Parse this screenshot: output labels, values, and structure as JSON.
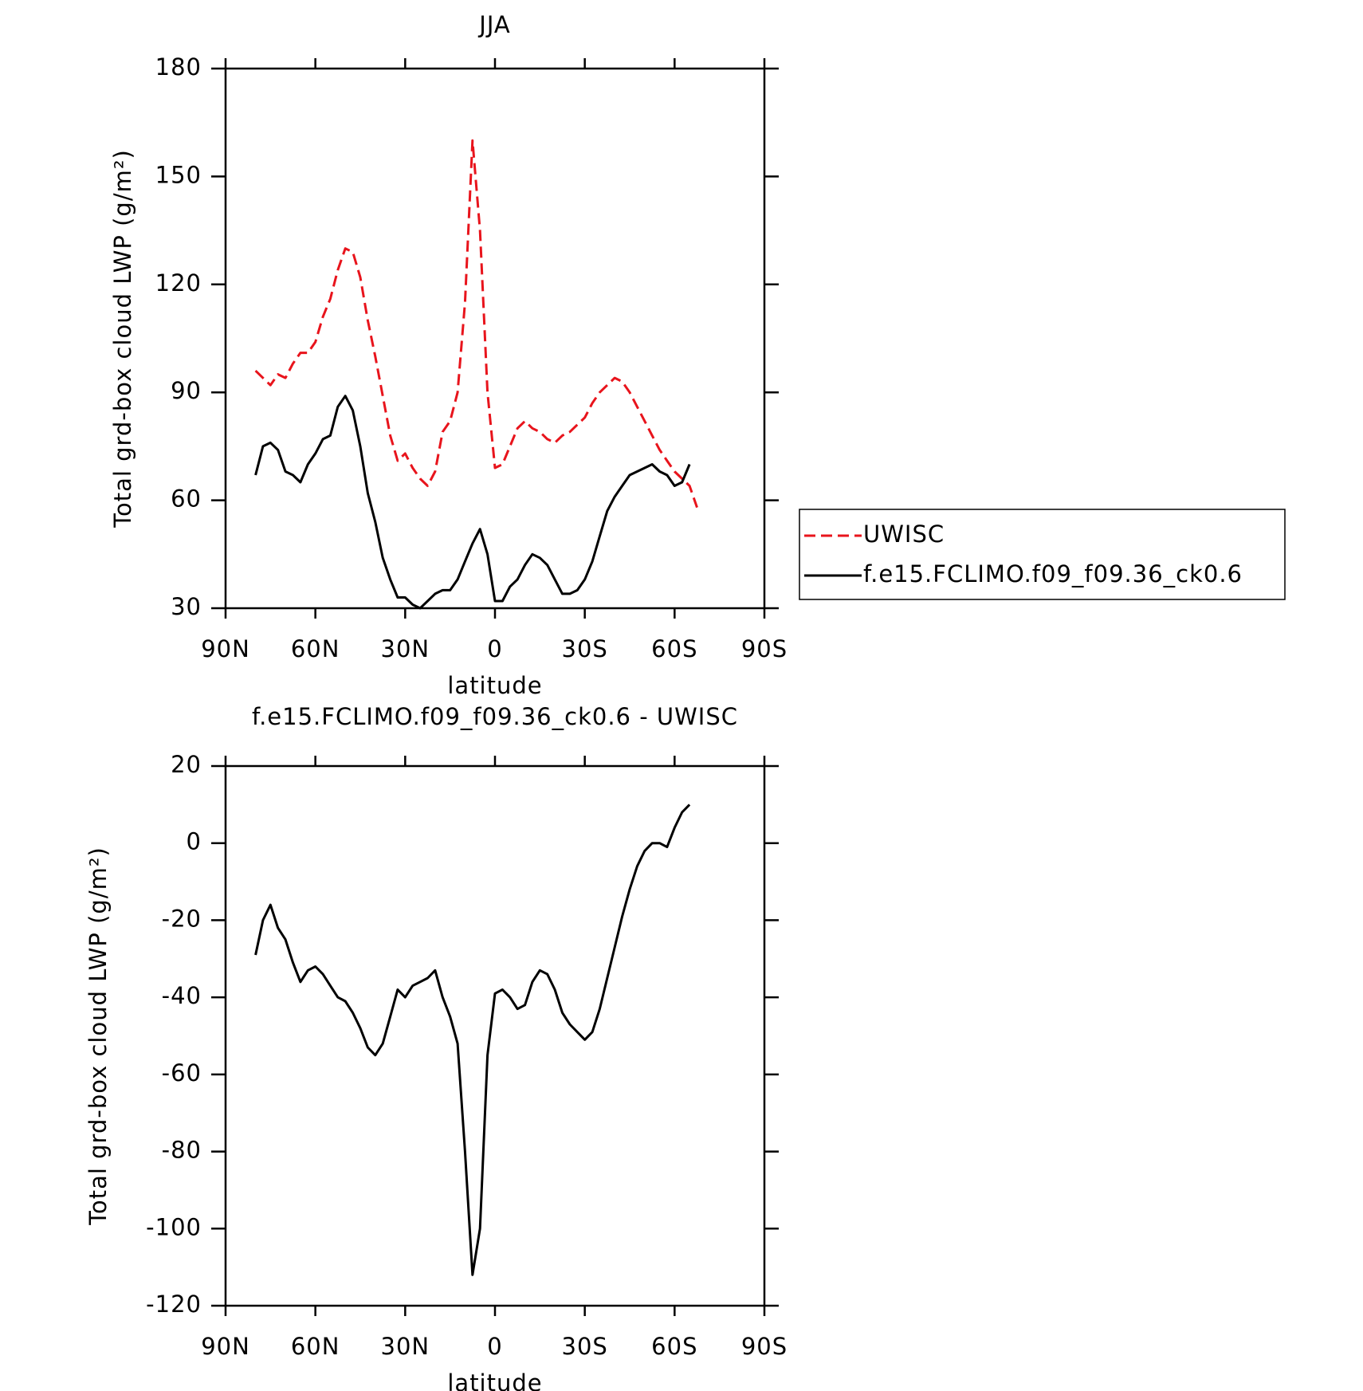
{
  "chart_data": [
    {
      "type": "line",
      "title": "JJA",
      "xlabel": "latitude",
      "ylabel": "Total grd-box cloud LWP (g/m²)",
      "x": [
        80,
        77.5,
        75,
        72.5,
        70,
        67.5,
        65,
        62.5,
        60,
        57.5,
        55,
        52.5,
        50,
        47.5,
        45,
        42.5,
        40,
        37.5,
        35,
        32.5,
        30,
        27.5,
        25,
        22.5,
        20,
        17.5,
        15,
        12.5,
        10,
        7.5,
        5,
        2.5,
        0,
        -2.5,
        -5,
        -7.5,
        -10,
        -12.5,
        -15,
        -17.5,
        -20,
        -22.5,
        -25,
        -27.5,
        -30,
        -32.5,
        -35,
        -37.5,
        -40,
        -42.5,
        -45,
        -47.5,
        -50,
        -52.5,
        -55,
        -57.5,
        -60,
        -62.5,
        -65,
        -67.5
      ],
      "series": [
        {
          "name": "UWISC",
          "color": "#e8141c",
          "line_style": "dashed",
          "values": [
            96,
            94,
            92,
            95,
            94,
            98,
            101,
            101,
            104,
            111,
            116,
            124,
            130,
            129,
            122,
            110,
            100,
            89,
            78,
            71,
            73,
            69,
            66,
            64,
            68,
            79,
            82,
            90,
            115,
            160,
            135,
            90,
            69,
            70,
            75,
            80,
            82,
            80,
            79,
            77,
            76,
            78,
            79,
            81,
            83,
            87,
            90,
            92,
            94,
            93,
            90,
            86,
            82,
            78,
            74,
            71,
            68,
            66,
            64,
            58
          ]
        },
        {
          "name": "f.e15.FCLIMO.f09_f09.36_ck0.6",
          "color": "#000000",
          "line_style": "solid",
          "values": [
            67,
            75,
            76,
            74,
            68,
            67,
            65,
            70,
            73,
            77,
            78,
            86,
            89,
            85,
            75,
            62,
            54,
            44,
            38,
            33,
            33,
            31,
            30,
            32,
            34,
            35,
            35,
            38,
            43,
            48,
            52,
            45,
            32,
            32,
            36,
            38,
            42,
            45,
            44,
            42,
            38,
            34,
            34,
            35,
            38,
            43,
            50,
            57,
            61,
            64,
            67,
            68,
            69,
            70,
            68,
            67,
            64,
            65,
            70,
            null
          ]
        }
      ],
      "xlim": [
        90,
        -90
      ],
      "xticks": [
        {
          "value": 90,
          "label": "90N"
        },
        {
          "value": 60,
          "label": "60N"
        },
        {
          "value": 30,
          "label": "30N"
        },
        0,
        {
          "value": -30,
          "label": "30S"
        },
        {
          "value": -60,
          "label": "60S"
        },
        {
          "value": -90,
          "label": "90S"
        }
      ],
      "ylim": [
        30,
        180
      ],
      "yticks": [
        30,
        60,
        90,
        120,
        150,
        180
      ],
      "legend": "right"
    },
    {
      "type": "line",
      "title": "f.e15.FCLIMO.f09_f09.36_ck0.6 - UWISC",
      "xlabel": "latitude",
      "ylabel": "Total grd-box cloud LWP (g/m²)",
      "x": [
        80,
        77.5,
        75,
        72.5,
        70,
        67.5,
        65,
        62.5,
        60,
        57.5,
        55,
        52.5,
        50,
        47.5,
        45,
        42.5,
        40,
        37.5,
        35,
        32.5,
        30,
        27.5,
        25,
        22.5,
        20,
        17.5,
        15,
        12.5,
        10,
        7.5,
        5,
        2.5,
        0,
        -2.5,
        -5,
        -7.5,
        -10,
        -12.5,
        -15,
        -17.5,
        -20,
        -22.5,
        -25,
        -27.5,
        -30,
        -32.5,
        -35,
        -37.5,
        -40,
        -42.5,
        -45,
        -47.5,
        -50,
        -52.5,
        -55,
        -57.5,
        -60,
        -62.5,
        -65
      ],
      "values": [
        -29,
        -20,
        -16,
        -22,
        -25,
        -31,
        -36,
        -33,
        -32,
        -34,
        -37,
        -40,
        -41,
        -44,
        -48,
        -53,
        -55,
        -52,
        -45,
        -38,
        -40,
        -37,
        -36,
        -35,
        -33,
        -40,
        -45,
        -52,
        -80,
        -112,
        -100,
        -55,
        -39,
        -38,
        -40,
        -43,
        -42,
        -36,
        -33,
        -34,
        -38,
        -44,
        -47,
        -49,
        -51,
        -49,
        -43,
        -35,
        -27,
        -19,
        -12,
        -6,
        -2,
        0,
        0,
        -1,
        4,
        8,
        10
      ],
      "color": "#000000",
      "xlim": [
        90,
        -90
      ],
      "xticks": [
        {
          "value": 90,
          "label": "90N"
        },
        {
          "value": 60,
          "label": "60N"
        },
        {
          "value": 30,
          "label": "30N"
        },
        0,
        {
          "value": -30,
          "label": "30S"
        },
        {
          "value": -60,
          "label": "60S"
        },
        {
          "value": -90,
          "label": "90S"
        }
      ],
      "ylim": [
        -120,
        20
      ],
      "yticks": [
        -120,
        -100,
        -80,
        -60,
        -40,
        -20,
        0,
        20
      ]
    }
  ]
}
